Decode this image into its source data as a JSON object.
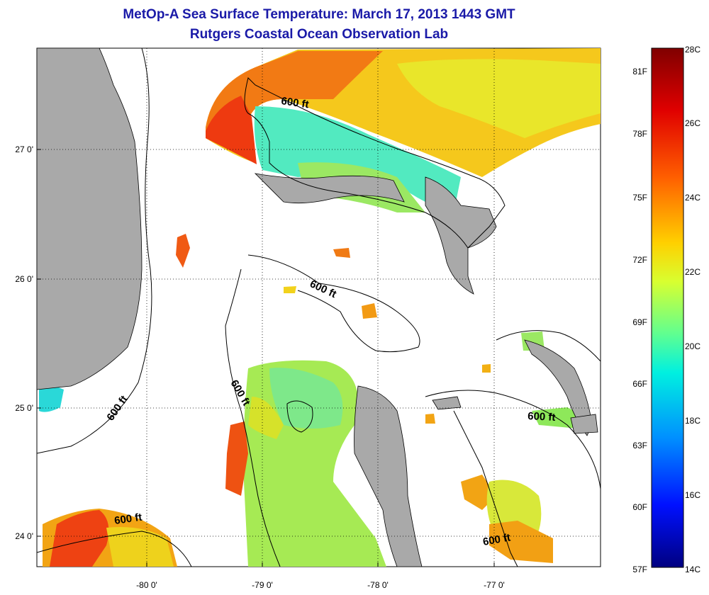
{
  "title": "MetOp-A Sea Surface Temperature:  March 17, 2013 1443 GMT",
  "subtitle": "Rutgers Coastal Ocean Observation Lab",
  "axes": {
    "x_ticks": [
      "-80 0'",
      "-79 0'",
      "-78 0'",
      "-77 0'"
    ],
    "y_ticks": [
      "27 0'",
      "26 0'",
      "25 0'",
      "24 0'"
    ]
  },
  "contour_label": "600 ft",
  "colorbar": {
    "fahrenheit": [
      "81F",
      "78F",
      "75F",
      "72F",
      "69F",
      "66F",
      "63F",
      "60F",
      "57F"
    ],
    "celsius": [
      "28C",
      "26C",
      "24C",
      "22C",
      "20C",
      "18C",
      "16C",
      "14C"
    ],
    "colors": [
      "#800000",
      "#ff0000",
      "#ff8000",
      "#ffff00",
      "#80ff80",
      "#00ffff",
      "#0080ff",
      "#0000ff",
      "#000080"
    ]
  },
  "colors": {
    "land": "#a9a9a9",
    "title": "#1a1aa8",
    "warm": "#f04a10",
    "orange": "#f7a014",
    "yellow": "#e8e21c",
    "green": "#8ee85a",
    "cyan": "#3ee8c8"
  }
}
